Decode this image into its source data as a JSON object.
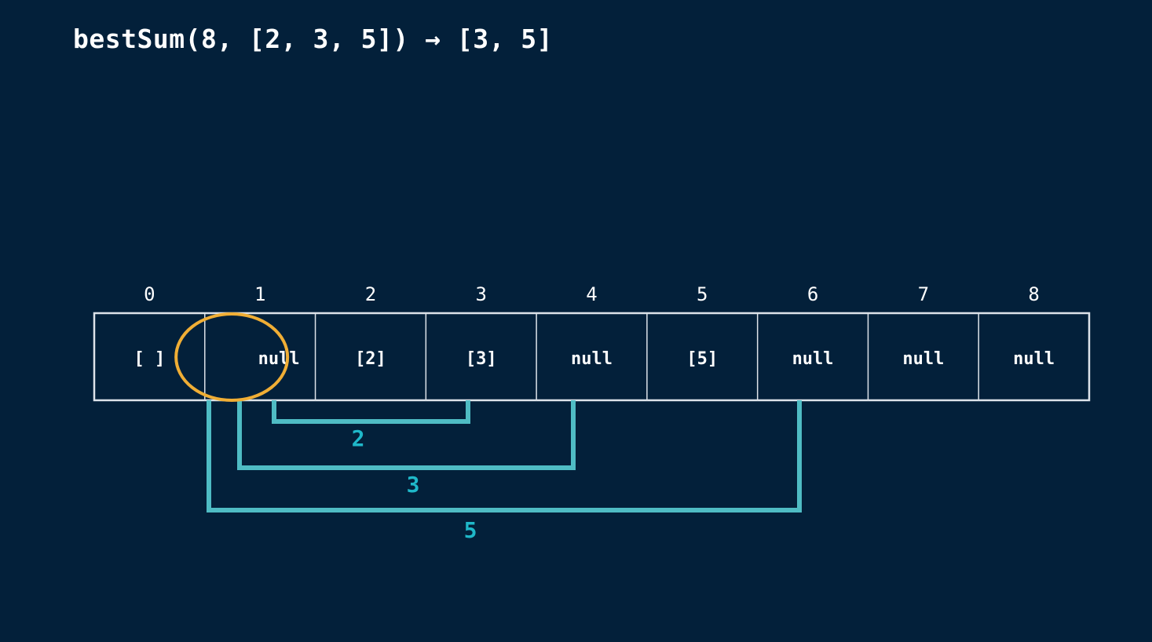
{
  "title": "bestSum(8, [2, 3, 5]) → [3, 5]",
  "table": {
    "indices": [
      "0",
      "1",
      "2",
      "3",
      "4",
      "5",
      "6",
      "7",
      "8"
    ],
    "values": [
      "[ ]",
      "null",
      "[2]",
      "[3]",
      "null",
      "[5]",
      "null",
      "null",
      "null"
    ],
    "highlighted_index": 1
  },
  "jumps": [
    {
      "from": 1,
      "to": 3,
      "label": "2"
    },
    {
      "from": 1,
      "to": 4,
      "label": "3"
    },
    {
      "from": 1,
      "to": 6,
      "label": "5"
    }
  ],
  "colors": {
    "background": "#03203a",
    "text": "#ffffff",
    "grid": "#dde3ea",
    "highlight": "#f0ae35",
    "jump": "#4fbcc4",
    "jump_label": "#1fb8c9"
  }
}
